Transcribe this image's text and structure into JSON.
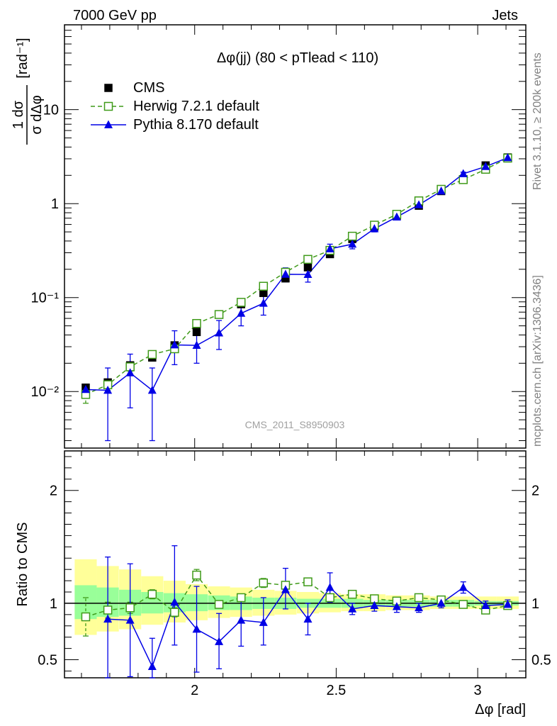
{
  "header": {
    "left": "7000 GeV pp",
    "right": "Jets"
  },
  "side_labels": {
    "rivet": "Rivet 3.1.10, ≥ 200k events",
    "mcplots": "mcplots.cern.ch [arXiv:1306.3436]"
  },
  "colors": {
    "cms": "#000000",
    "herwig": "#3f9a19",
    "pythia": "#0000e6",
    "band_outer": "#ffff99",
    "band_inner": "#99ff99"
  },
  "chart_data": [
    {
      "type": "scatter",
      "panel": "main",
      "title": "Δφ(jj) (80 < pTlead < 110)",
      "watermark": "CMS_2011_S8950903",
      "xlabel": "Δφ [rad]",
      "ylabel_frac_num": "1 dσ",
      "ylabel_frac_den": "σ dΔφ",
      "ylabel_unit": "[rad⁻¹]",
      "yscale": "log",
      "xlim": [
        1.54,
        3.17
      ],
      "ylim": [
        0.0025,
        80
      ],
      "ytick_labels": [
        "10⁻²",
        "10⁻¹",
        "1",
        "10"
      ],
      "legend_position": "top-left",
      "x": [
        1.615,
        1.693,
        1.772,
        1.85,
        1.929,
        2.007,
        2.086,
        2.164,
        2.243,
        2.321,
        2.4,
        2.478,
        2.557,
        2.635,
        2.714,
        2.792,
        2.871,
        2.949,
        3.028,
        3.106
      ],
      "series": [
        {
          "name": "CMS",
          "marker": "square",
          "values": [
            0.011,
            0.0125,
            0.019,
            0.023,
            0.031,
            0.043,
            0.066,
            0.085,
            0.112,
            0.16,
            0.21,
            0.29,
            0.42,
            0.57,
            0.74,
            0.95,
            1.36,
            1.82,
            2.55,
            3.1
          ]
        },
        {
          "name": "Herwig 7.2.1 default",
          "marker": "open-square",
          "style": "dashed",
          "values": [
            0.0093,
            0.0118,
            0.0183,
            0.0248,
            0.0285,
            0.053,
            0.066,
            0.089,
            0.132,
            0.186,
            0.255,
            0.318,
            0.45,
            0.59,
            0.77,
            1.07,
            1.42,
            1.8,
            2.32,
            3.05
          ],
          "err_low": [
            0.0018,
            0.0015,
            0.0018,
            0.002,
            0.0025,
            0.004,
            0.004,
            0.005,
            0.006,
            0.008,
            0.01,
            0.012,
            0.015,
            0.02,
            0.025,
            0.03,
            0.04,
            0.05,
            0.06,
            0.07
          ],
          "err_high": [
            0.0018,
            0.0015,
            0.0018,
            0.002,
            0.0025,
            0.004,
            0.004,
            0.005,
            0.006,
            0.008,
            0.01,
            0.012,
            0.015,
            0.02,
            0.025,
            0.03,
            0.04,
            0.05,
            0.06,
            0.07
          ]
        },
        {
          "name": "Pythia 8.170 default",
          "marker": "triangle",
          "style": "solid",
          "values": [
            0.0105,
            0.0103,
            0.0158,
            0.0103,
            0.0313,
            0.031,
            0.042,
            0.068,
            0.087,
            0.177,
            0.176,
            0.33,
            0.37,
            0.54,
            0.72,
            0.97,
            1.36,
            2.08,
            2.48,
            3.08
          ],
          "err_low": [
            0.0005,
            0.0073,
            0.0091,
            0.0073,
            0.012,
            0.011,
            0.014,
            0.018,
            0.022,
            0.03,
            0.03,
            0.04,
            0.04,
            0.04,
            0.04,
            0.05,
            0.06,
            0.08,
            0.09,
            0.1
          ],
          "err_high": [
            0.0005,
            0.0075,
            0.0092,
            0.0075,
            0.013,
            0.012,
            0.015,
            0.02,
            0.024,
            0.03,
            0.03,
            0.04,
            0.04,
            0.04,
            0.04,
            0.05,
            0.06,
            0.08,
            0.09,
            0.1
          ]
        }
      ]
    },
    {
      "type": "line",
      "panel": "ratio",
      "ylabel": "Ratio to CMS",
      "xlabel": "Δφ [rad]",
      "ylim": [
        0.34,
        2.35
      ],
      "xtick_labels": [
        "2",
        "2.5",
        "3"
      ],
      "ytick_labels": [
        "0.5",
        "1",
        "2"
      ],
      "x": [
        1.615,
        1.693,
        1.772,
        1.85,
        1.929,
        2.007,
        2.086,
        2.164,
        2.243,
        2.321,
        2.4,
        2.478,
        2.557,
        2.635,
        2.714,
        2.792,
        2.871,
        2.949,
        3.028,
        3.106
      ],
      "bands": {
        "outer_low": [
          0.72,
          0.75,
          0.77,
          0.81,
          0.83,
          0.85,
          0.87,
          0.88,
          0.89,
          0.9,
          0.91,
          0.92,
          0.93,
          0.93,
          0.94,
          0.94,
          0.95,
          0.95,
          0.95,
          0.95
        ],
        "outer_high": [
          1.39,
          1.33,
          1.3,
          1.24,
          1.2,
          1.17,
          1.15,
          1.14,
          1.12,
          1.11,
          1.1,
          1.09,
          1.08,
          1.08,
          1.07,
          1.07,
          1.06,
          1.06,
          1.06,
          1.06
        ],
        "inner_low": [
          0.86,
          0.88,
          0.89,
          0.91,
          0.92,
          0.93,
          0.94,
          0.94,
          0.95,
          0.95,
          0.96,
          0.96,
          0.96,
          0.97,
          0.97,
          0.97,
          0.97,
          0.97,
          0.98,
          0.98
        ],
        "inner_high": [
          1.16,
          1.14,
          1.12,
          1.1,
          1.09,
          1.08,
          1.07,
          1.06,
          1.05,
          1.05,
          1.04,
          1.04,
          1.04,
          1.03,
          1.03,
          1.03,
          1.03,
          1.03,
          1.02,
          1.02
        ]
      },
      "series": [
        {
          "name": "Herwig 7.2.1 default",
          "values": [
            0.88,
            0.94,
            0.96,
            1.08,
            0.92,
            1.25,
            0.99,
            1.05,
            1.18,
            1.16,
            1.19,
            1.05,
            1.08,
            1.04,
            1.02,
            1.05,
            1.03,
            0.99,
            0.94,
            0.98
          ],
          "err_low": [
            0.17,
            0.07,
            0.05,
            0.04,
            0.04,
            0.05,
            0.03,
            0.03,
            0.04,
            0.03,
            0.03,
            0.02,
            0.02,
            0.02,
            0.02,
            0.02,
            0.02,
            0.02,
            0.02,
            0.02
          ],
          "err_high": [
            0.17,
            0.07,
            0.05,
            0.04,
            0.04,
            0.05,
            0.03,
            0.03,
            0.04,
            0.03,
            0.03,
            0.02,
            0.02,
            0.02,
            0.02,
            0.02,
            0.02,
            0.02,
            0.02,
            0.02
          ]
        },
        {
          "name": "Pythia 8.170 default",
          "values": [
            null,
            0.86,
            0.85,
            0.44,
            1.01,
            0.77,
            0.66,
            0.85,
            0.83,
            1.12,
            0.86,
            1.14,
            0.95,
            0.98,
            0.97,
            0.96,
            1.0,
            1.14,
            0.98,
            0.99
          ],
          "err_low": [
            null,
            0.55,
            0.5,
            0.25,
            0.38,
            0.38,
            0.24,
            0.23,
            0.2,
            0.17,
            0.14,
            0.13,
            0.05,
            0.05,
            0.05,
            0.04,
            0.04,
            0.05,
            0.04,
            0.04
          ],
          "err_high": [
            null,
            0.55,
            0.5,
            0.25,
            0.5,
            0.38,
            0.25,
            0.23,
            0.22,
            0.19,
            0.14,
            0.13,
            0.05,
            0.05,
            0.05,
            0.04,
            0.04,
            0.05,
            0.04,
            0.04
          ]
        }
      ]
    }
  ]
}
